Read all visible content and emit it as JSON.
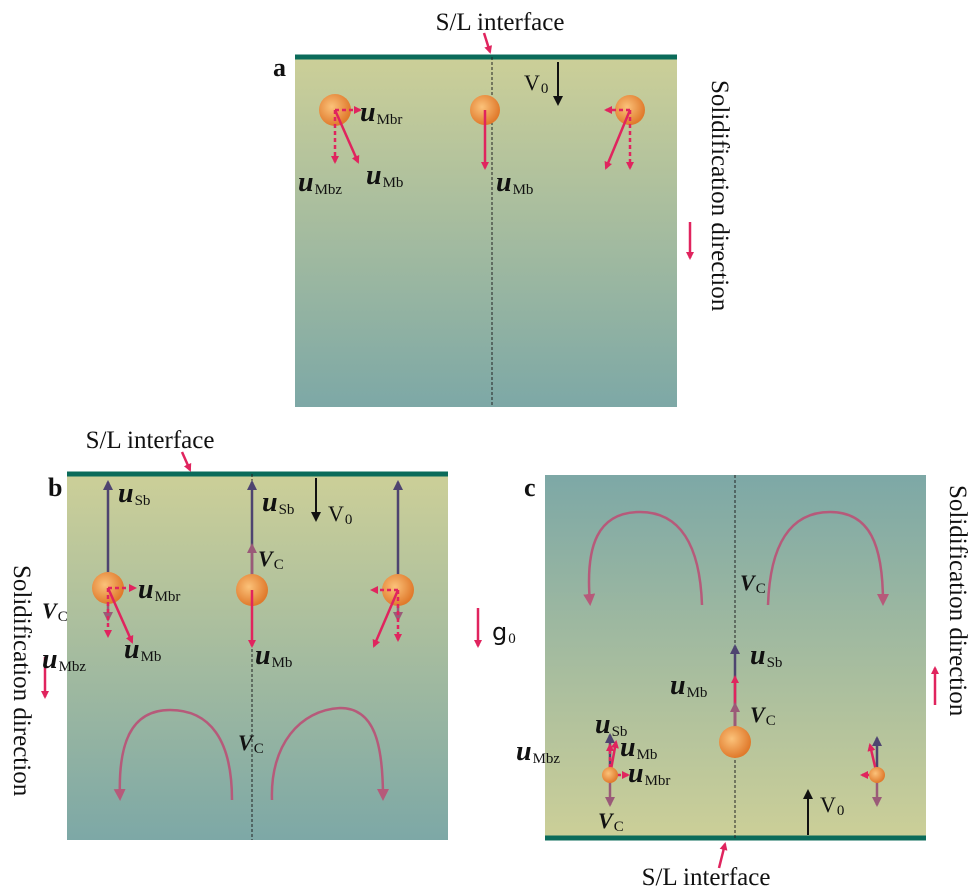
{
  "panels": [
    {
      "letter": "a",
      "interface_label": "S/L interface",
      "direction_label": "Solidification direction",
      "labels": [
        {
          "main": "V",
          "sub": "0"
        },
        {
          "main": "u",
          "sub": "Mbr"
        },
        {
          "main": "u",
          "sub": "Mbz"
        },
        {
          "main": "u",
          "sub": "Mb"
        },
        {
          "main": "u",
          "sub": "Mb"
        }
      ]
    },
    {
      "letter": "b",
      "interface_label": "S/L interface",
      "direction_label": "Solidification direction",
      "labels": [
        {
          "main": "u",
          "sub": "Sb"
        },
        {
          "main": "u",
          "sub": "Sb"
        },
        {
          "main": "V",
          "sub": "0"
        },
        {
          "main": "V",
          "sub": "C"
        },
        {
          "main": "u",
          "sub": "Mbr"
        },
        {
          "main": "V",
          "sub": "C"
        },
        {
          "main": "u",
          "sub": "Mbz"
        },
        {
          "main": "u",
          "sub": "Mb"
        },
        {
          "main": "u",
          "sub": "Mb"
        },
        {
          "main": "V",
          "sub": "C"
        },
        {
          "main": "g",
          "sub": "0"
        }
      ]
    },
    {
      "letter": "c",
      "interface_label": "S/L interface",
      "direction_label": "Solidification direction",
      "labels": [
        {
          "main": "V",
          "sub": "C"
        },
        {
          "main": "u",
          "sub": "Sb"
        },
        {
          "main": "u",
          "sub": "Mb"
        },
        {
          "main": "V",
          "sub": "C"
        },
        {
          "main": "u",
          "sub": "Sb"
        },
        {
          "main": "u",
          "sub": "Mbz"
        },
        {
          "main": "u",
          "sub": "Mb"
        },
        {
          "main": "u",
          "sub": "Mbr"
        },
        {
          "main": "V",
          "sub": "C"
        },
        {
          "main": "V",
          "sub": "0"
        }
      ]
    }
  ]
}
